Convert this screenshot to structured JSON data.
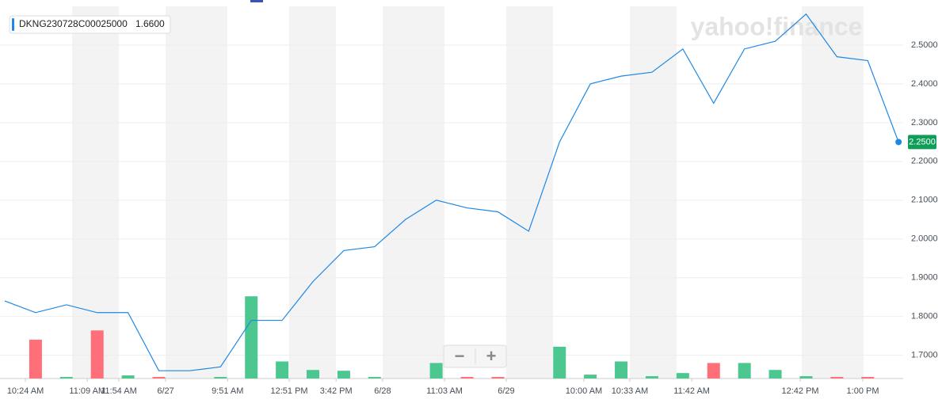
{
  "chart_data": {
    "type": "line",
    "legend_label": "DKNG230728C00025000",
    "legend_value": "1.6600",
    "watermark": "yahoo!finance",
    "last_label": "2.2500",
    "zoom_out": "−",
    "zoom_in": "+",
    "color": "#1e88e5",
    "xlim": [
      -0.154,
      29.15
    ],
    "xticks": [
      {
        "value": 0.67,
        "label": "10:24 AM"
      },
      {
        "value": 2.68,
        "label": "11:09 AM"
      },
      {
        "value": 3.7,
        "label": "11:54 AM"
      },
      {
        "value": 5.22,
        "label": "6/27"
      },
      {
        "value": 7.23,
        "label": "9:51 AM"
      },
      {
        "value": 9.23,
        "label": "12:51 PM"
      },
      {
        "value": 10.75,
        "label": "3:42 PM"
      },
      {
        "value": 12.26,
        "label": "6/28"
      },
      {
        "value": 14.27,
        "label": "11:03 AM"
      },
      {
        "value": 16.27,
        "label": "6/29"
      },
      {
        "value": 18.79,
        "label": "10:00 AM"
      },
      {
        "value": 20.28,
        "label": "10:33 AM"
      },
      {
        "value": 22.29,
        "label": "11:42 AM"
      },
      {
        "value": 25.81,
        "label": "12:42 PM"
      },
      {
        "value": 27.84,
        "label": "1:00 PM"
      }
    ],
    "ylim": [
      1.64,
      2.6
    ],
    "yticks": [
      {
        "value": 1.7,
        "label": "1.7000"
      },
      {
        "value": 1.8,
        "label": "1.8000"
      },
      {
        "value": 1.9,
        "label": "1.9000"
      },
      {
        "value": 2.0,
        "label": "2.0000"
      },
      {
        "value": 2.1,
        "label": "2.1000"
      },
      {
        "value": 2.2,
        "label": "2.2000"
      },
      {
        "value": 2.3,
        "label": "2.3000"
      },
      {
        "value": 2.4,
        "label": "2.4000"
      },
      {
        "value": 2.5,
        "label": "2.5000"
      }
    ],
    "grid": true,
    "values": [
      1.84,
      1.81,
      1.83,
      1.81,
      1.81,
      1.66,
      1.66,
      1.67,
      1.79,
      1.79,
      1.89,
      1.97,
      1.98,
      2.05,
      2.1,
      2.08,
      2.07,
      2.02,
      2.25,
      2.4,
      2.42,
      2.43,
      2.49,
      2.35,
      2.49,
      2.51,
      2.58,
      2.47,
      2.46,
      2.25
    ],
    "y2lim": [
      0,
      480
    ],
    "volume": [
      0,
      50,
      2,
      62,
      4,
      2,
      0,
      2,
      106,
      22,
      11,
      10,
      2,
      0,
      20,
      2,
      2,
      0,
      41,
      5,
      22,
      3,
      7,
      20,
      20,
      11,
      3,
      2,
      2,
      0
    ],
    "volume_colors": [
      "#4cc790",
      "#ff6f7a",
      "#4cc790",
      "#ff6f7a",
      "#4cc790",
      "#ff6f7a",
      "#4cc790",
      "#4cc790",
      "#4cc790",
      "#4cc790",
      "#4cc790",
      "#4cc790",
      "#4cc790",
      "#4cc790",
      "#4cc790",
      "#ff6f7a",
      "#ff6f7a",
      "#4cc790",
      "#4cc790",
      "#4cc790",
      "#4cc790",
      "#4cc790",
      "#4cc790",
      "#ff6f7a",
      "#4cc790",
      "#4cc790",
      "#4cc790",
      "#ff6f7a",
      "#ff6f7a",
      "#4cc790"
    ]
  }
}
